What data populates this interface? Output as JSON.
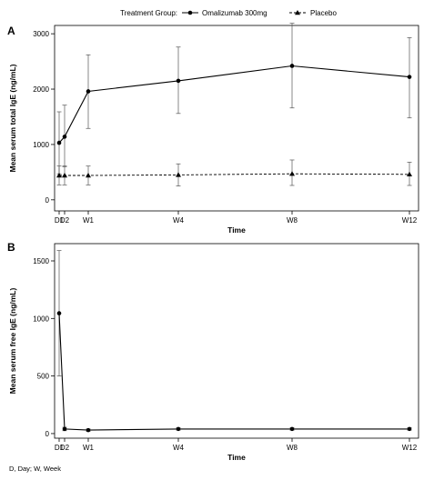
{
  "legend": {
    "title": "Treatment Group:",
    "items": [
      {
        "label": "Omalizumab 300mg",
        "marker": "circle",
        "line": "solid"
      },
      {
        "label": "Placebo",
        "marker": "triangle",
        "line": "dashed"
      }
    ]
  },
  "footnote": "D, Day; W, Week",
  "colors": {
    "line": "#000000",
    "axis": "#000000",
    "errorbar": "#555555",
    "background": "#ffffff"
  },
  "chart_data": [
    {
      "panel_label": "A",
      "type": "line",
      "xlabel": "Time",
      "ylabel": "Mean serum total IgE (ng/mL)",
      "x_tick_labels": [
        "D1",
        "D2",
        "W1",
        "W4",
        "W8",
        "W12"
      ],
      "x_ticks_days": [
        1,
        2,
        7,
        28,
        56,
        84
      ],
      "xlim_days": [
        0,
        84
      ],
      "ylim": [
        -200,
        3150
      ],
      "y_ticks": [
        0,
        1000,
        2000,
        3000
      ],
      "y_tick_labels": [
        "0",
        "1000",
        "2000",
        "3000"
      ],
      "grid": false,
      "series": [
        {
          "name": "Omalizumab 300mg",
          "marker": "circle",
          "line": "solid",
          "points": [
            {
              "day": 1,
              "y": 1030,
              "err_low": 470,
              "err_high": 1590
            },
            {
              "day": 2,
              "y": 1140,
              "err_low": 600,
              "err_high": 1710
            },
            {
              "day": 7,
              "y": 1960,
              "err_low": 1290,
              "err_high": 2620
            },
            {
              "day": 28,
              "y": 2150,
              "err_low": 1560,
              "err_high": 2760
            },
            {
              "day": 56,
              "y": 2420,
              "err_low": 1660,
              "err_high": 3190
            },
            {
              "day": 84,
              "y": 2220,
              "err_low": 1480,
              "err_high": 2930
            }
          ]
        },
        {
          "name": "Placebo",
          "marker": "triangle",
          "line": "dashed",
          "points": [
            {
              "day": 1,
              "y": 440,
              "err_low": 270,
              "err_high": 610
            },
            {
              "day": 2,
              "y": 440,
              "err_low": 270,
              "err_high": 610
            },
            {
              "day": 7,
              "y": 440,
              "err_low": 270,
              "err_high": 610
            },
            {
              "day": 28,
              "y": 450,
              "err_low": 250,
              "err_high": 650
            },
            {
              "day": 56,
              "y": 470,
              "err_low": 260,
              "err_high": 720
            },
            {
              "day": 84,
              "y": 460,
              "err_low": 260,
              "err_high": 680
            }
          ]
        }
      ]
    },
    {
      "panel_label": "B",
      "type": "line",
      "xlabel": "Time",
      "ylabel": "Mean serum free IgE (ng/mL)",
      "x_tick_labels": [
        "D1",
        "D2",
        "W1",
        "W4",
        "W8",
        "W12"
      ],
      "x_ticks_days": [
        1,
        2,
        7,
        28,
        56,
        84
      ],
      "xlim_days": [
        0,
        84
      ],
      "ylim": [
        -40,
        1650
      ],
      "y_ticks": [
        0,
        500,
        1000,
        1500
      ],
      "y_tick_labels": [
        "0",
        "500",
        "1000",
        "1500"
      ],
      "grid": false,
      "series": [
        {
          "name": "Omalizumab 300mg",
          "marker": "circle",
          "line": "solid",
          "points": [
            {
              "day": 1,
              "y": 1045,
              "err_low": 500,
              "err_high": 1590
            },
            {
              "day": 2,
              "y": 40,
              "err_low": 25,
              "err_high": 55
            },
            {
              "day": 7,
              "y": 30,
              "err_low": 20,
              "err_high": 40
            },
            {
              "day": 28,
              "y": 40,
              "err_low": 30,
              "err_high": 50
            },
            {
              "day": 56,
              "y": 40,
              "err_low": 30,
              "err_high": 50
            },
            {
              "day": 84,
              "y": 40,
              "err_low": 30,
              "err_high": 50
            }
          ]
        }
      ]
    }
  ]
}
